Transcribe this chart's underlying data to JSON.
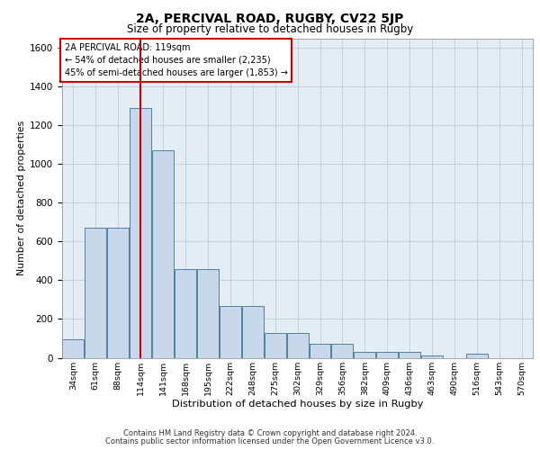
{
  "title1": "2A, PERCIVAL ROAD, RUGBY, CV22 5JP",
  "title2": "Size of property relative to detached houses in Rugby",
  "xlabel": "Distribution of detached houses by size in Rugby",
  "ylabel": "Number of detached properties",
  "footer": "Contains HM Land Registry data © Crown copyright and database right 2024.\nContains public sector information licensed under the Open Government Licence v3.0.",
  "bin_labels": [
    "34sqm",
    "61sqm",
    "88sqm",
    "114sqm",
    "141sqm",
    "168sqm",
    "195sqm",
    "222sqm",
    "248sqm",
    "275sqm",
    "302sqm",
    "329sqm",
    "356sqm",
    "382sqm",
    "409sqm",
    "436sqm",
    "463sqm",
    "490sqm",
    "516sqm",
    "543sqm",
    "570sqm"
  ],
  "bar_values": [
    95,
    670,
    670,
    1290,
    1070,
    460,
    460,
    265,
    265,
    130,
    130,
    70,
    70,
    30,
    30,
    30,
    10,
    0,
    20,
    0,
    0
  ],
  "bar_color": "#c8d8ea",
  "bar_edgecolor": "#5080a0",
  "red_line_bin_idx": 3,
  "red_line_color": "#cc0000",
  "annotation_line1": "2A PERCIVAL ROAD: 119sqm",
  "annotation_line2": "← 54% of detached houses are smaller (2,235)",
  "annotation_line3": "45% of semi-detached houses are larger (1,853) →",
  "annotation_box_edgecolor": "#cc0000",
  "ylim_max": 1650,
  "yticks": [
    0,
    200,
    400,
    600,
    800,
    1000,
    1200,
    1400,
    1600
  ],
  "grid_color": "#c0ccd6",
  "bg_color": "#e4ecf4"
}
